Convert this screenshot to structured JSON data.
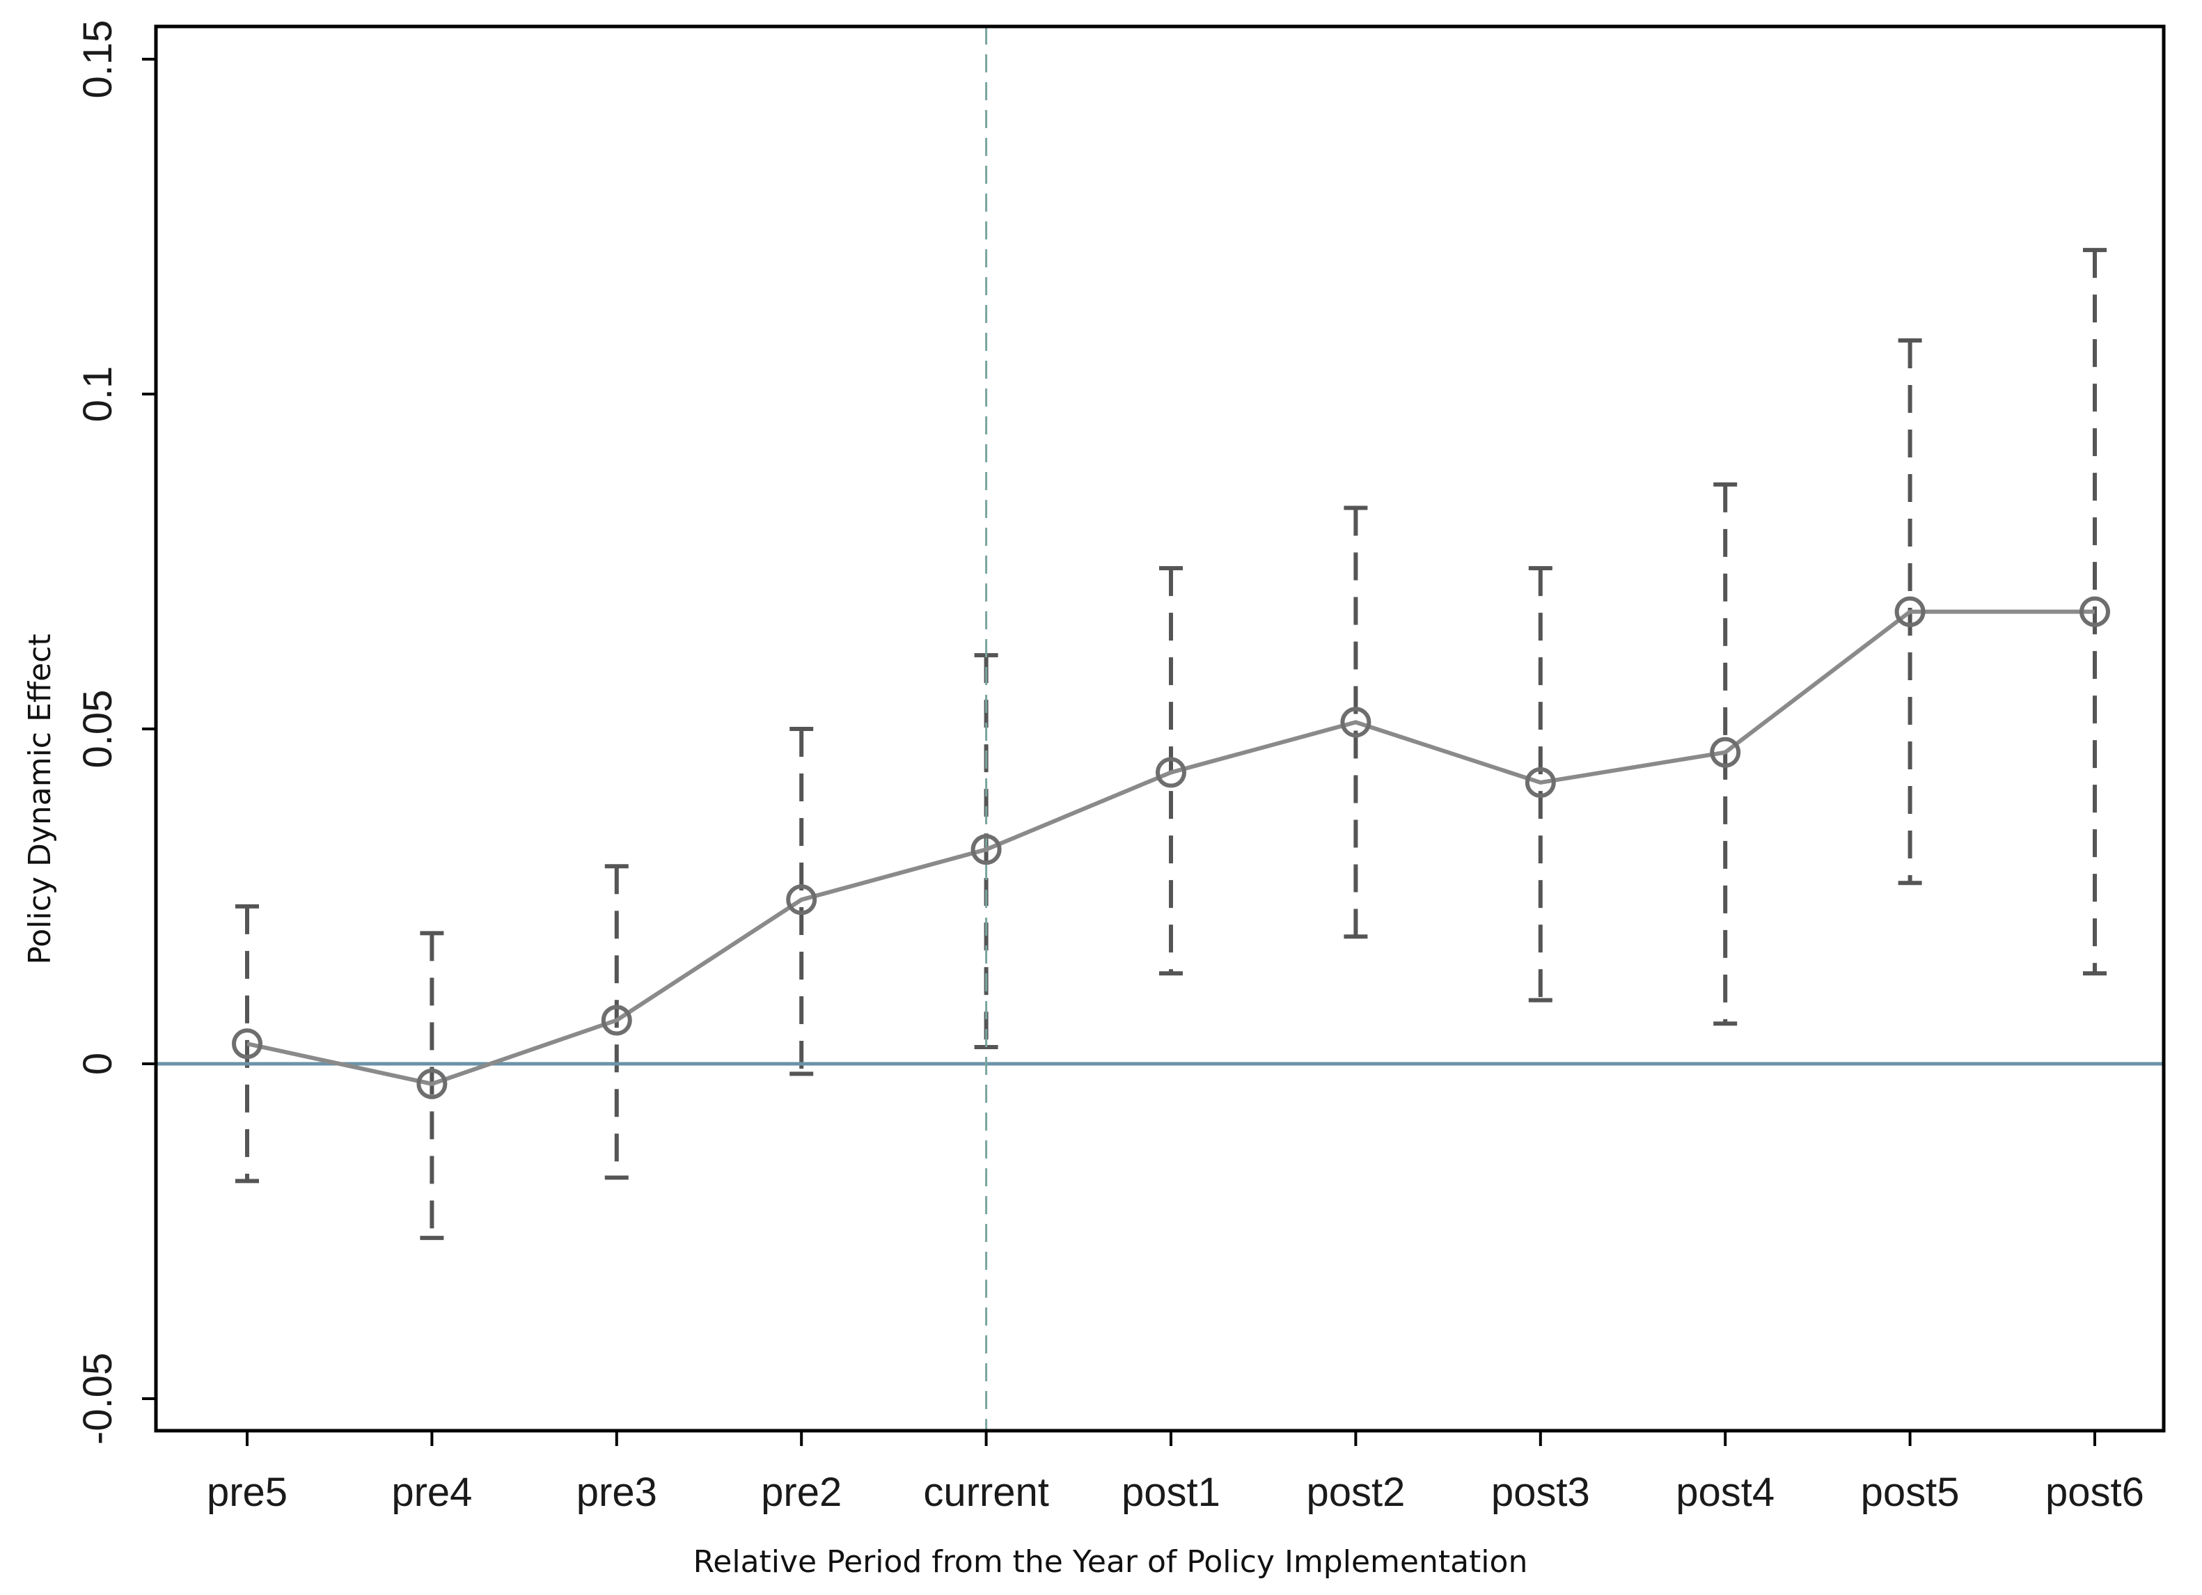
{
  "chart_data": {
    "type": "line",
    "title": "",
    "xlabel": "Relative Period from the Year of Policy Implementation",
    "ylabel": "Policy Dynamic Effect",
    "categories": [
      "pre5",
      "pre4",
      "pre3",
      "pre2",
      "current",
      "post1",
      "post2",
      "post3",
      "post4",
      "post5",
      "post6"
    ],
    "series": [
      {
        "values": [
          0.003,
          -0.003,
          0.0065,
          0.0245,
          0.032,
          0.0435,
          0.051,
          0.042,
          0.0465,
          0.0675,
          0.0675
        ],
        "ci_lower": [
          -0.0175,
          -0.026,
          -0.017,
          -0.0015,
          0.0025,
          0.0135,
          0.019,
          0.0095,
          0.006,
          0.027,
          0.0135
        ],
        "ci_upper": [
          0.0235,
          0.0195,
          0.0295,
          0.05,
          0.061,
          0.074,
          0.083,
          0.074,
          0.0865,
          0.108,
          0.1215
        ]
      }
    ],
    "ylim": [
      -0.055,
      0.155
    ],
    "yticks": [
      -0.05,
      0,
      0.05,
      0.1,
      0.15
    ],
    "ytick_labels": [
      "-0.05",
      "0",
      "0.05",
      "0.1",
      "0.15"
    ],
    "reference_hline": 0,
    "reference_vline_category": "current",
    "grid": false,
    "colors": {
      "line": "#8a8a8a",
      "marker": "#6e6e6e",
      "ci": "#555555",
      "hline": "#6b93a8",
      "vline": "#7aa5a0"
    }
  }
}
